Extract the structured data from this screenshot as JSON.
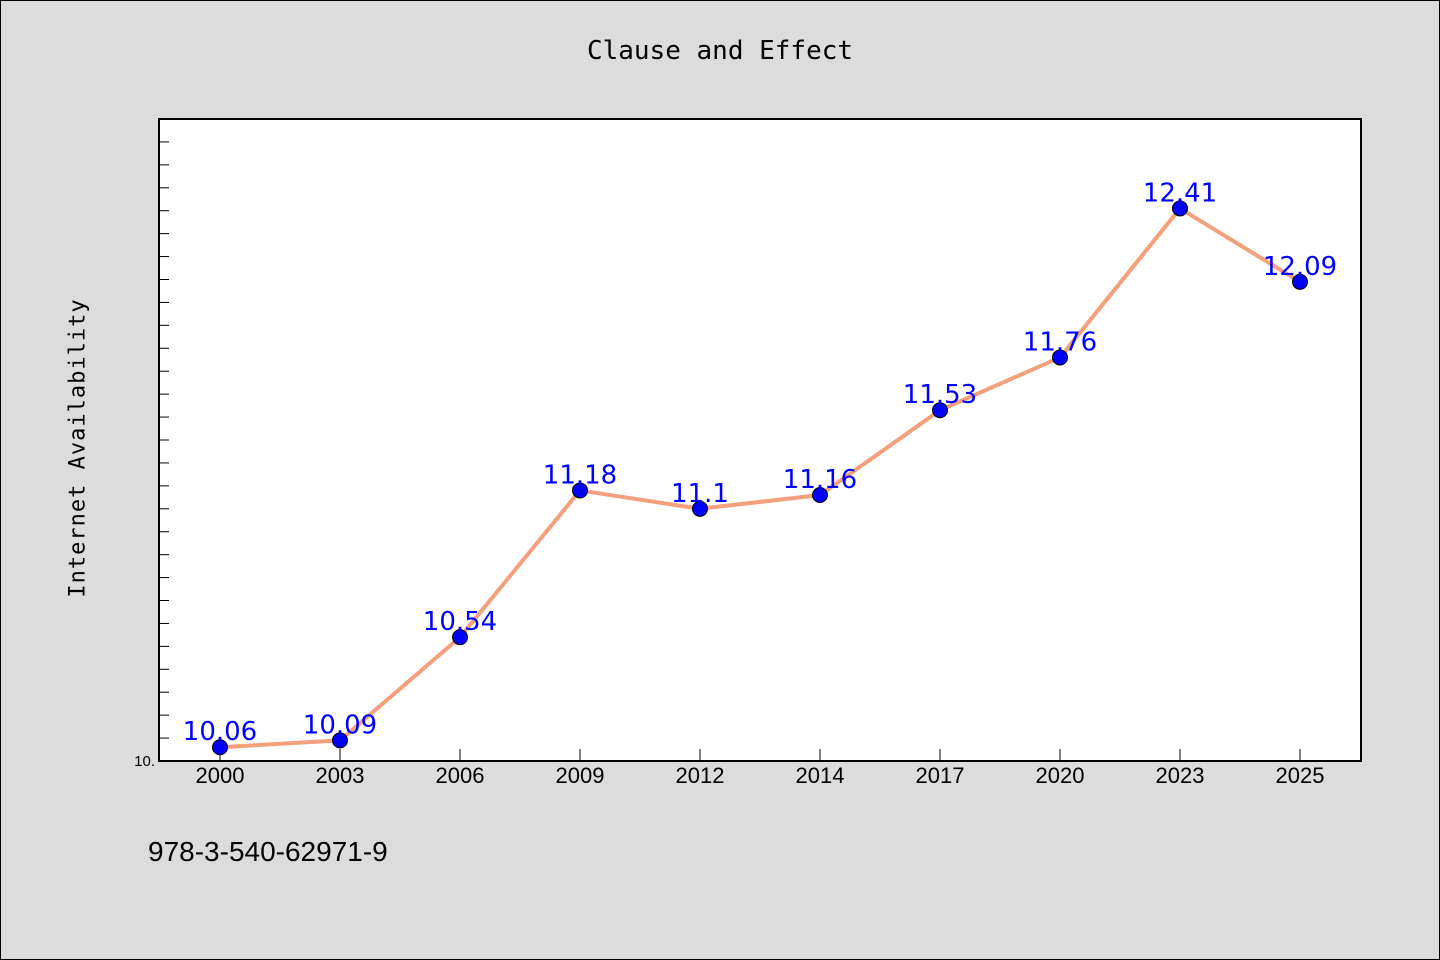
{
  "chart_data": {
    "type": "line",
    "title": "Clause and Effect",
    "xlabel": "",
    "ylabel": "Internet Availability",
    "categories": [
      "2000",
      "2003",
      "2006",
      "2009",
      "2012",
      "2014",
      "2017",
      "2020",
      "2023",
      "2025"
    ],
    "series": [
      {
        "name": "",
        "values": [
          10.06,
          10.09,
          10.54,
          11.18,
          11.1,
          11.16,
          11.53,
          11.76,
          12.41,
          12.09
        ],
        "data_labels": [
          "10.06",
          "10.09",
          "10.54",
          "11.18",
          "11.1",
          "11.16",
          "11.53",
          "11.76",
          "12.41",
          "12.09"
        ]
      }
    ],
    "y_tick_label": "10.",
    "ylim": [
      10.0,
      12.8
    ],
    "grid": false,
    "legend": "none",
    "colors": {
      "line": "#f4a07c",
      "marker": "#0000ff",
      "label": "#0000ff",
      "background": "#dcdcdc",
      "plot_area": "#ffffff"
    }
  },
  "footer": {
    "code": "978-3-540-62971-9"
  }
}
